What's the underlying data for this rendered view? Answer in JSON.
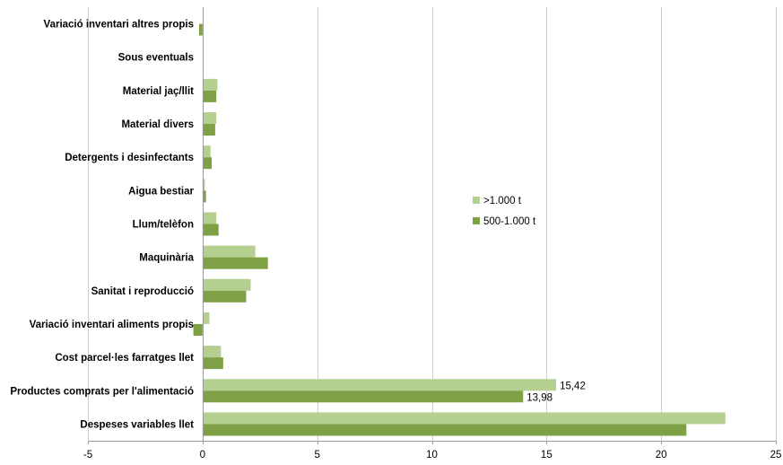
{
  "chart_data": {
    "type": "bar",
    "orientation": "horizontal",
    "categories": [
      "Despeses variables llet",
      "Productes comprats per l'alimentació",
      "Cost parcel·les farratges llet",
      "Variació inventari aliments propis",
      "Sanitat i reproducció",
      "Maquinària",
      "Llum/telèfon",
      "Aigua bestiar",
      "Detergents i desinfectants",
      "Material divers",
      "Material jaç/llit",
      "Sous eventuals",
      "Variació inventari altres propis"
    ],
    "series": [
      {
        "name": ">1.000 t",
        "color": "#b5cf91",
        "values": [
          22.8,
          15.42,
          0.8,
          0.3,
          2.1,
          2.3,
          0.6,
          0.1,
          0.35,
          0.6,
          0.65,
          0,
          0
        ],
        "data_labels": [
          "",
          "15,42",
          "",
          "",
          "",
          "",
          "",
          "",
          "",
          "",
          "",
          "",
          ""
        ]
      },
      {
        "name": "500-1.000 t",
        "color": "#7fa145",
        "values": [
          21.1,
          13.98,
          0.9,
          -0.4,
          1.9,
          2.85,
          0.7,
          0.15,
          0.4,
          0.55,
          0.6,
          0,
          -0.15
        ],
        "data_labels": [
          "",
          "13,98",
          "",
          "",
          "",
          "",
          "",
          "",
          "",
          "",
          "",
          "",
          ""
        ]
      }
    ],
    "xlim": [
      -5,
      25
    ],
    "xticks": [
      "-5",
      "0",
      "5",
      "10",
      "15",
      "20",
      "25"
    ],
    "xtick_values": [
      -5,
      0,
      5,
      10,
      15,
      20,
      25
    ],
    "grid": "vertical major gridlines",
    "legend_position": "right"
  }
}
